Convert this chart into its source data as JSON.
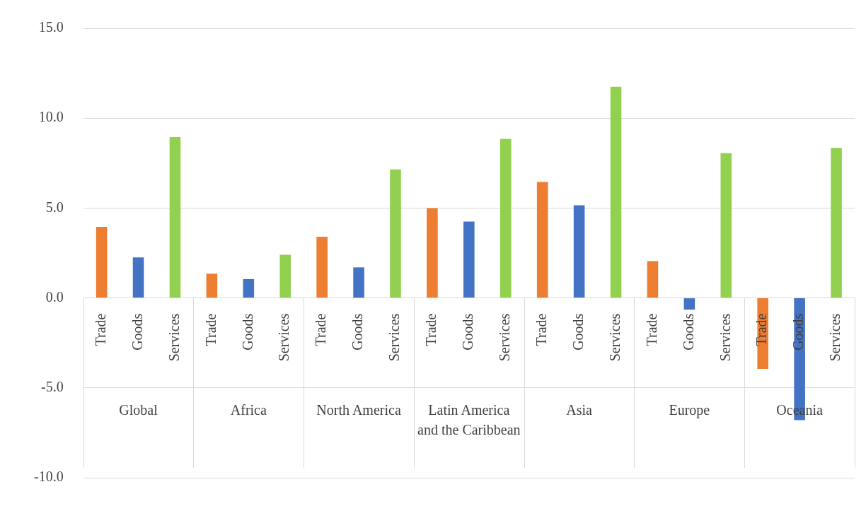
{
  "chart_data": {
    "type": "bar",
    "categories": [
      "Global",
      "Africa",
      "North America",
      "Latin America and the Caribbean",
      "Asia",
      "Europe",
      "Oceania"
    ],
    "series": [
      {
        "name": "Trade",
        "color": "#ed7d31",
        "values": [
          3.95,
          1.35,
          3.4,
          5.0,
          6.45,
          2.05,
          -3.95
        ]
      },
      {
        "name": "Goods",
        "color": "#4472c4",
        "values": [
          2.25,
          1.05,
          1.7,
          4.25,
          5.15,
          -0.65,
          -6.8
        ]
      },
      {
        "name": "Services",
        "color": "#92d050",
        "values": [
          8.95,
          2.4,
          7.15,
          8.85,
          11.75,
          8.05,
          8.35
        ]
      }
    ],
    "ylim": [
      -10,
      15
    ],
    "yticks": [
      {
        "value": -10,
        "label": "-10.0"
      },
      {
        "value": -5,
        "label": "-5.0"
      },
      {
        "value": 0,
        "label": "0.0"
      },
      {
        "value": 5,
        "label": "5.0"
      },
      {
        "value": 10,
        "label": "10.0"
      },
      {
        "value": 15,
        "label": "15.0"
      }
    ],
    "grid": "y",
    "legend": false
  }
}
